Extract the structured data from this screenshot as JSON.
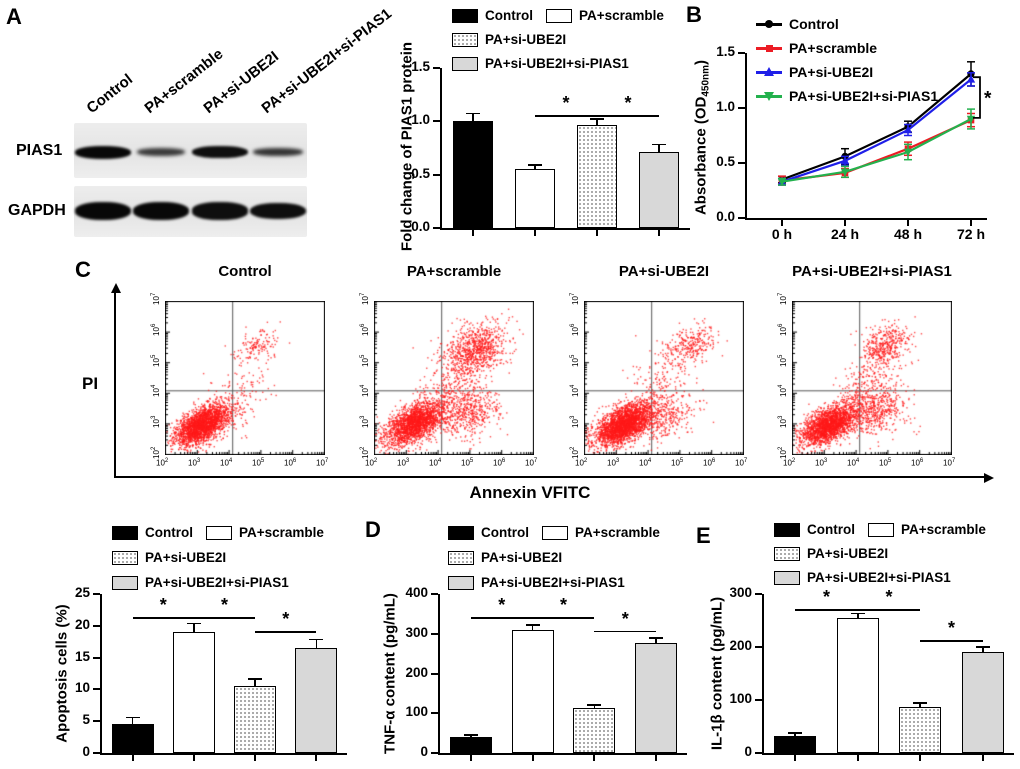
{
  "figure": {
    "panel_labels": {
      "A": "A",
      "B": "B",
      "C": "C",
      "D": "D",
      "E": "E"
    }
  },
  "groups": [
    {
      "label": "Control",
      "swatch": "black"
    },
    {
      "label": "PA+scramble",
      "swatch": "white"
    },
    {
      "label": "PA+si-UBE2I",
      "swatch": "stippled"
    },
    {
      "label": "PA+si-UBE2I+si-PIAS1",
      "swatch": "gray"
    }
  ],
  "western_blot": {
    "lane_labels": [
      "Control",
      "PA+scramble",
      "PA+si-UBE2I",
      "PA+si-UBE2I+si-PIAS1"
    ],
    "rows": [
      {
        "label": "PIAS1",
        "bands": [
          {
            "intensity": 1.0,
            "thickness": 1.0
          },
          {
            "intensity": 0.55,
            "thickness": 0.6
          },
          {
            "intensity": 0.95,
            "thickness": 0.95
          },
          {
            "intensity": 0.6,
            "thickness": 0.6
          }
        ]
      },
      {
        "label": "GAPDH",
        "bands": [
          {
            "intensity": 1.0,
            "thickness": 1.2
          },
          {
            "intensity": 1.0,
            "thickness": 1.2
          },
          {
            "intensity": 0.95,
            "thickness": 1.15
          },
          {
            "intensity": 0.95,
            "thickness": 1.1
          }
        ]
      }
    ]
  },
  "colors": {
    "black": "#000000",
    "red": "#ec1c24",
    "blue": "#1f1fe8",
    "green": "#23b14d",
    "flow_dot_red": "#ff1a1a",
    "bar_gray": "#d8d8d8"
  },
  "chart_data": [
    {
      "id": "pias1_fold_change",
      "panel": "A",
      "type": "bar",
      "categories": [
        "Control",
        "PA+scramble",
        "PA+si-UBE2I",
        "PA+si-UBE2I+si-PIAS1"
      ],
      "values": [
        1.0,
        0.55,
        0.97,
        0.71
      ],
      "errors": [
        0.08,
        0.05,
        0.06,
        0.08
      ],
      "ylabel": "Fold change of PIAS1 protein",
      "ylim": [
        0,
        1.5
      ],
      "yticks": [
        "0.0",
        "0.5",
        "1.0",
        "1.5"
      ],
      "significance": [
        {
          "between": [
            1,
            2
          ],
          "y": 1.06,
          "label": "*"
        },
        {
          "between": [
            2,
            3
          ],
          "y": 1.06,
          "label": "*"
        }
      ]
    },
    {
      "id": "cck8_absorbance",
      "panel": "B",
      "type": "line",
      "x_labels": [
        "0 h",
        "24 h",
        "48 h",
        "72 h"
      ],
      "ylabel": "Absorbance (OD450nm)",
      "ylabel_pre": "Absorbance (OD",
      "ylabel_sub": "450nm",
      "ylabel_post": ")",
      "ylim": [
        0,
        1.5
      ],
      "yticks": [
        "0.0",
        "0.5",
        "1.0",
        "1.5"
      ],
      "series": [
        {
          "name": "Control",
          "color": "#000000",
          "marker": "circle",
          "values": [
            0.35,
            0.56,
            0.83,
            1.31
          ],
          "errors": [
            0.03,
            0.07,
            0.05,
            0.11
          ]
        },
        {
          "name": "PA+scramble",
          "color": "#ec1c24",
          "marker": "square",
          "values": [
            0.34,
            0.41,
            0.63,
            0.89
          ],
          "errors": [
            0.04,
            0.04,
            0.06,
            0.06
          ]
        },
        {
          "name": "PA+si-UBE2I",
          "color": "#1f1fe8",
          "marker": "triangle-up",
          "values": [
            0.33,
            0.52,
            0.8,
            1.26
          ],
          "errors": [
            0.03,
            0.04,
            0.05,
            0.06
          ]
        },
        {
          "name": "PA+si-UBE2I+si-PIAS1",
          "color": "#23b14d",
          "marker": "triangle-down",
          "values": [
            0.33,
            0.42,
            0.6,
            0.9
          ],
          "errors": [
            0.03,
            0.05,
            0.07,
            0.09
          ]
        }
      ],
      "significance_bracket": {
        "y_top": 1.28,
        "y_bottom": 0.91,
        "label": "*"
      }
    },
    {
      "id": "flow_cytometry_apoptosis",
      "panel": "C",
      "type": "scatter",
      "xlabel": "Annexin VFITC",
      "ylabel": "PI",
      "x_log_range": [
        2,
        7
      ],
      "y_log_range": [
        2,
        7
      ],
      "quadrant_gate_log": [
        4.1,
        4.1
      ],
      "plots": [
        {
          "title": "Control",
          "populations": [
            {
              "name": "viable",
              "cx": 3.15,
              "cy": 3.0,
              "sx": 0.42,
              "sy": 0.33,
              "corr": 0.55,
              "n": 2300
            },
            {
              "name": "transition",
              "cx": 4.2,
              "cy": 3.9,
              "sx": 0.5,
              "sy": 0.6,
              "corr": 0.3,
              "n": 150
            },
            {
              "name": "late-apoptotic",
              "cx": 4.9,
              "cy": 5.6,
              "sx": 0.33,
              "sy": 0.28,
              "corr": 0.2,
              "n": 130
            }
          ]
        },
        {
          "title": "PA+scramble",
          "populations": [
            {
              "name": "viable",
              "cx": 3.25,
              "cy": 3.05,
              "sx": 0.46,
              "sy": 0.36,
              "corr": 0.55,
              "n": 2000
            },
            {
              "name": "early-apoptotic",
              "cx": 4.8,
              "cy": 3.4,
              "sx": 0.55,
              "sy": 0.42,
              "corr": 0.2,
              "n": 550
            },
            {
              "name": "late-apoptotic",
              "cx": 5.15,
              "cy": 5.45,
              "sx": 0.5,
              "sy": 0.42,
              "corr": 0.3,
              "n": 800
            },
            {
              "name": "transition",
              "cx": 4.5,
              "cy": 4.4,
              "sx": 0.55,
              "sy": 0.55,
              "corr": 0.4,
              "n": 260
            }
          ]
        },
        {
          "title": "PA+si-UBE2I",
          "populations": [
            {
              "name": "viable",
              "cx": 3.2,
              "cy": 3.0,
              "sx": 0.45,
              "sy": 0.34,
              "corr": 0.55,
              "n": 2500
            },
            {
              "name": "early-apoptotic",
              "cx": 4.4,
              "cy": 3.3,
              "sx": 0.5,
              "sy": 0.38,
              "corr": 0.2,
              "n": 380
            },
            {
              "name": "late-apoptotic",
              "cx": 5.3,
              "cy": 5.6,
              "sx": 0.42,
              "sy": 0.33,
              "corr": 0.3,
              "n": 280
            },
            {
              "name": "transition",
              "cx": 4.3,
              "cy": 4.3,
              "sx": 0.5,
              "sy": 0.5,
              "corr": 0.4,
              "n": 160
            }
          ]
        },
        {
          "title": "PA+si-UBE2I+si-PIAS1",
          "populations": [
            {
              "name": "viable",
              "cx": 3.15,
              "cy": 3.0,
              "sx": 0.44,
              "sy": 0.34,
              "corr": 0.55,
              "n": 2100
            },
            {
              "name": "early-apoptotic",
              "cx": 4.6,
              "cy": 3.45,
              "sx": 0.5,
              "sy": 0.4,
              "corr": 0.2,
              "n": 480
            },
            {
              "name": "late-apoptotic",
              "cx": 4.9,
              "cy": 5.6,
              "sx": 0.36,
              "sy": 0.3,
              "corr": 0.3,
              "n": 380
            },
            {
              "name": "transition",
              "cx": 4.5,
              "cy": 4.5,
              "sx": 0.5,
              "sy": 0.5,
              "corr": 0.4,
              "n": 240
            }
          ]
        }
      ]
    },
    {
      "id": "apoptosis_percent",
      "panel": "C",
      "type": "bar",
      "categories": [
        "Control",
        "PA+scramble",
        "PA+si-UBE2I",
        "PA+si-UBE2I+si-PIAS1"
      ],
      "values": [
        4.5,
        19.1,
        10.6,
        16.5
      ],
      "errors": [
        1.2,
        1.4,
        1.2,
        1.5
      ],
      "ylabel": "Apoptosis cells (%)",
      "ylim": [
        0,
        25
      ],
      "yticks": [
        "0",
        "5",
        "10",
        "15",
        "20",
        "25"
      ],
      "significance": [
        {
          "between": [
            0,
            1
          ],
          "y": 21.4,
          "label": "*"
        },
        {
          "between": [
            1,
            2
          ],
          "y": 21.4,
          "label": "*"
        },
        {
          "between": [
            2,
            3
          ],
          "y": 19.2,
          "label": "*"
        }
      ]
    },
    {
      "id": "tnf_alpha_content",
      "panel": "D",
      "type": "bar",
      "categories": [
        "Control",
        "PA+scramble",
        "PA+si-UBE2I",
        "PA+si-UBE2I+si-PIAS1"
      ],
      "values": [
        40,
        310,
        113,
        277
      ],
      "errors": [
        8,
        14,
        10,
        14
      ],
      "ylabel": "TNF-α content (pg/mL)",
      "ylim": [
        0,
        400
      ],
      "yticks": [
        "0",
        "100",
        "200",
        "300",
        "400"
      ],
      "significance": [
        {
          "between": [
            0,
            1
          ],
          "y": 342,
          "label": "*"
        },
        {
          "between": [
            1,
            2
          ],
          "y": 342,
          "label": "*"
        },
        {
          "between": [
            2,
            3
          ],
          "y": 308,
          "label": "*"
        }
      ]
    },
    {
      "id": "il1b_content",
      "panel": "E",
      "type": "bar",
      "categories": [
        "Control",
        "PA+scramble",
        "PA+si-UBE2I",
        "PA+si-UBE2I+si-PIAS1"
      ],
      "values": [
        32,
        254,
        87,
        190
      ],
      "errors": [
        7,
        11,
        9,
        11
      ],
      "ylabel": "IL-1β content (pg/mL)",
      "ylim": [
        0,
        300
      ],
      "yticks": [
        "0",
        "100",
        "200",
        "300"
      ],
      "significance": [
        {
          "between": [
            0,
            1
          ],
          "y": 272,
          "label": "*"
        },
        {
          "between": [
            1,
            2
          ],
          "y": 272,
          "label": "*"
        },
        {
          "between": [
            2,
            3
          ],
          "y": 213,
          "label": "*"
        }
      ]
    }
  ]
}
